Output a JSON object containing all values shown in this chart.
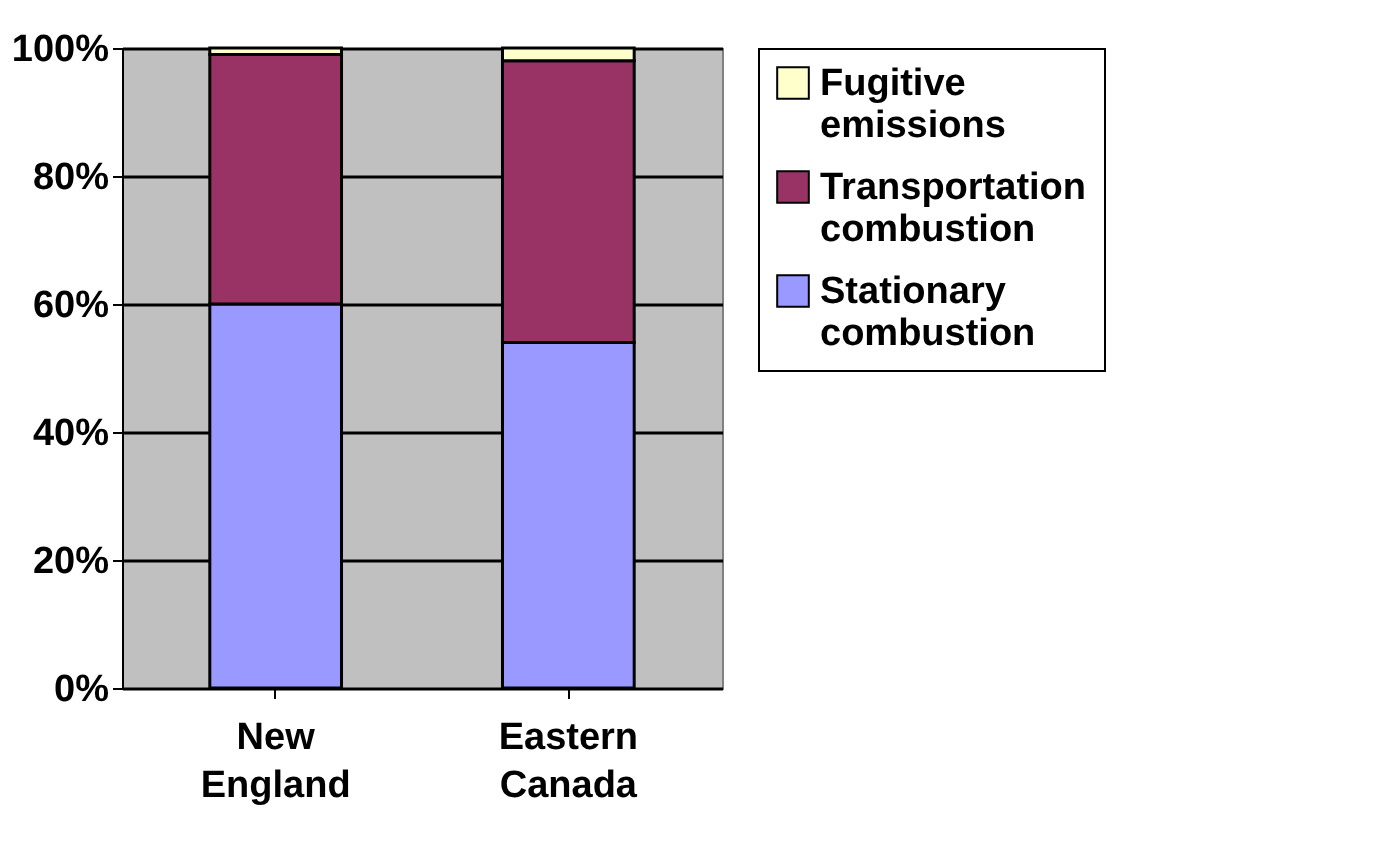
{
  "chart_data": {
    "type": "bar",
    "stacked": true,
    "categories": [
      "New England",
      "Eastern Canada"
    ],
    "series": [
      {
        "name": "Stationary combustion",
        "color": "#9999ff",
        "values": [
          60,
          54
        ]
      },
      {
        "name": "Transportation combustion",
        "color": "#993366",
        "values": [
          39,
          44
        ]
      },
      {
        "name": "Fugitive emissions",
        "color": "#ffffcc",
        "values": [
          1,
          2
        ]
      }
    ],
    "ylim": [
      0,
      100
    ],
    "yticks": [
      {
        "value": 0,
        "label": "0%"
      },
      {
        "value": 20,
        "label": "20%"
      },
      {
        "value": 40,
        "label": "40%"
      },
      {
        "value": 60,
        "label": "60%"
      },
      {
        "value": 80,
        "label": "80%"
      },
      {
        "value": 100,
        "label": "100%"
      }
    ],
    "grid": "y",
    "legend": "right"
  }
}
